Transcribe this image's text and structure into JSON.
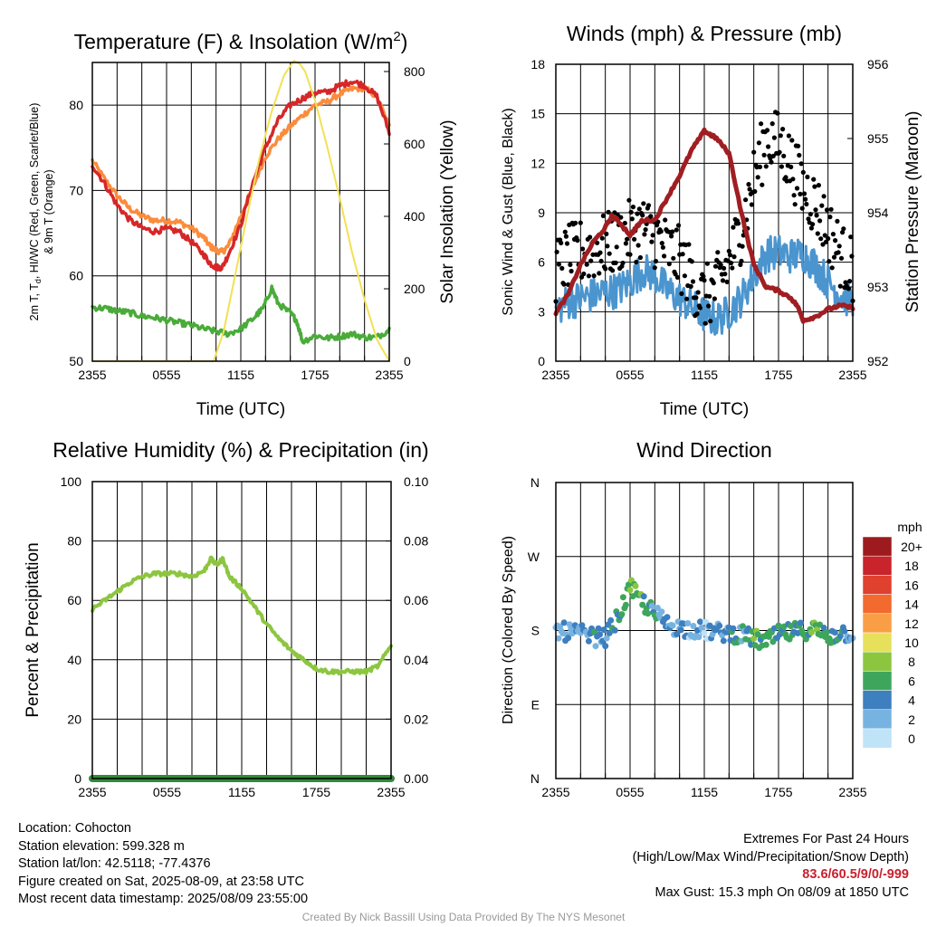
{
  "chart_data": [
    {
      "type": "line",
      "title": "Temperature (F) & Insolation (W/m²)",
      "title_main": "Temperature (F) & Insolation (W/m",
      "title_sup": "2",
      "title_tail": ")",
      "ylabel_left_line1": "2m T, T",
      "ylabel_left_sub": "d",
      "ylabel_left_line1_tail": ", HI/WC (Red, Green, Scarlet/Blue)",
      "ylabel_left_line2": "& 9m T (Orange)",
      "ylabel_right": "Solar Insolation (Yellow)",
      "xlabel": "Time (UTC)",
      "x_ticks": [
        "2355",
        "0555",
        "1155",
        "1755",
        "2355"
      ],
      "x_range_hours": [
        0,
        24
      ],
      "ylim_left": [
        50,
        85
      ],
      "yticks_left": [
        "50",
        "60",
        "70",
        "80"
      ],
      "ylim_right": [
        0,
        825
      ],
      "yticks_right": [
        "0",
        "200",
        "400",
        "600",
        "800"
      ],
      "series": [
        {
          "color": "#fb8c3c",
          "axis": "left",
          "x": [
            0,
            1,
            2,
            3,
            4,
            5,
            6,
            7,
            8,
            9,
            9.5,
            10,
            10.5,
            11,
            12,
            13,
            14,
            15,
            16,
            17,
            18,
            19,
            20,
            21,
            22,
            23,
            24
          ],
          "y": [
            73.5,
            71.3,
            69.4,
            67.9,
            67.0,
            66.5,
            66.5,
            66.3,
            65.6,
            64.5,
            63.5,
            63.0,
            62.8,
            63.5,
            67.0,
            70.5,
            74.0,
            76.0,
            77.5,
            78.8,
            80.0,
            80.4,
            81.3,
            81.9,
            82.0,
            81.0,
            77.5
          ]
        },
        {
          "color": "#d62728",
          "axis": "left",
          "x": [
            0,
            1,
            2,
            3,
            4,
            5,
            6,
            7,
            8,
            9,
            9.5,
            10,
            10.5,
            11,
            12,
            13,
            14,
            15,
            16,
            17,
            18,
            19,
            20,
            21,
            22,
            23,
            24
          ],
          "y": [
            73.0,
            70.8,
            68.3,
            66.6,
            65.6,
            65.2,
            65.5,
            65.2,
            64.0,
            62.5,
            61.5,
            61.0,
            61.0,
            62.5,
            66.0,
            71.0,
            75.0,
            78.2,
            80.0,
            80.8,
            81.5,
            81.5,
            82.3,
            82.8,
            82.3,
            81.0,
            76.8
          ]
        },
        {
          "color": "#4aab3a",
          "axis": "left",
          "x": [
            0,
            1,
            2,
            3,
            4,
            5,
            6,
            7,
            8,
            9,
            10,
            11,
            12,
            13,
            13.8,
            14.5,
            15,
            16,
            16.5,
            17,
            18,
            19,
            20,
            21,
            22,
            23,
            24
          ],
          "y": [
            56.3,
            56.2,
            55.9,
            55.7,
            55.3,
            55.1,
            54.8,
            54.5,
            54.2,
            53.8,
            53.5,
            53.2,
            53.8,
            55.0,
            56.2,
            58.6,
            56.8,
            55.6,
            54.8,
            52.3,
            53.0,
            52.7,
            52.9,
            53.2,
            52.8,
            52.8,
            53.7
          ]
        },
        {
          "color": "#f2e154",
          "axis": "right",
          "x": [
            0,
            9.8,
            10.6,
            11.5,
            12.5,
            13.5,
            14.5,
            15.5,
            16.3,
            16.8,
            17.2,
            18,
            19,
            20,
            21,
            22,
            23,
            24
          ],
          "y": [
            0,
            0,
            80,
            230,
            400,
            560,
            690,
            790,
            830,
            820,
            800,
            720,
            590,
            450,
            300,
            170,
            60,
            0
          ]
        }
      ]
    },
    {
      "type": "line",
      "title": "Winds (mph) & Pressure (mb)",
      "ylabel_left": "Sonic Wind & Gust (Blue, Black)",
      "ylabel_right": "Station Pressure (Maroon)",
      "xlabel": "Time (UTC)",
      "x_ticks": [
        "2355",
        "0555",
        "1155",
        "1755",
        "2355"
      ],
      "x_range_hours": [
        0,
        24
      ],
      "ylim_left": [
        0,
        18
      ],
      "yticks_left": [
        "0",
        "3",
        "6",
        "9",
        "12",
        "15",
        "18"
      ],
      "ylim_right": [
        952,
        956
      ],
      "yticks_right": [
        "952",
        "953",
        "954",
        "955",
        "956"
      ],
      "series": [
        {
          "color": "#4b95cf",
          "axis": "left",
          "x": [
            0,
            1,
            2,
            3,
            4,
            5,
            6,
            7,
            8,
            9,
            10,
            11,
            12,
            13,
            14,
            15,
            16,
            17,
            18,
            19,
            20,
            21,
            22,
            23,
            24
          ],
          "y": [
            3.2,
            3.6,
            3.8,
            4.0,
            4.2,
            4.3,
            4.8,
            5.5,
            5.2,
            4.3,
            3.8,
            3.3,
            2.8,
            2.5,
            3.0,
            3.8,
            5.2,
            6.5,
            6.6,
            6.4,
            6.5,
            5.8,
            4.8,
            4.0,
            3.6
          ]
        },
        {
          "color": "#000000",
          "axis": "left",
          "mode": "scatter",
          "x": [
            0,
            1,
            2,
            3,
            4,
            5,
            6,
            7,
            8,
            9,
            10,
            11,
            12,
            13,
            14,
            15,
            16,
            17,
            18,
            19,
            20,
            21,
            22,
            23,
            24
          ],
          "y": [
            5.5,
            6.3,
            6.6,
            6.8,
            7.0,
            7.3,
            7.8,
            8.2,
            7.6,
            6.8,
            6.2,
            5.0,
            3.8,
            4.5,
            6.0,
            8.0,
            11.0,
            13.5,
            13.2,
            12.0,
            10.5,
            9.5,
            8.0,
            6.5,
            5.5
          ]
        },
        {
          "color": "#a01e22",
          "axis": "right",
          "x": [
            0,
            1,
            2,
            3,
            4,
            4.5,
            5,
            6,
            6.5,
            7,
            8,
            9,
            10,
            11,
            12,
            12.5,
            13,
            14,
            15,
            16,
            17,
            18,
            19,
            19.5,
            20,
            21,
            22,
            23,
            24
          ],
          "y": [
            952.65,
            952.9,
            953.3,
            953.6,
            953.8,
            953.95,
            953.9,
            953.7,
            953.8,
            953.9,
            953.9,
            954.2,
            954.5,
            954.85,
            955.1,
            955.05,
            955.0,
            954.8,
            954.0,
            953.3,
            953.0,
            952.95,
            952.85,
            952.75,
            952.55,
            952.6,
            952.7,
            952.75,
            952.72
          ]
        }
      ]
    },
    {
      "type": "line",
      "title": "Relative Humidity (%) & Precipitation (in)",
      "ylabel_left": "Percent & Precipitation",
      "x_ticks": [
        "2355",
        "0555",
        "1155",
        "1755",
        "2355"
      ],
      "x_range_hours": [
        0,
        24
      ],
      "ylim_left": [
        0,
        100
      ],
      "yticks_left": [
        "0",
        "20",
        "40",
        "60",
        "80",
        "100"
      ],
      "ylim_right": [
        0,
        0.1
      ],
      "yticks_right": [
        "0.00",
        "0.02",
        "0.04",
        "0.06",
        "0.08",
        "0.10"
      ],
      "series": [
        {
          "color": "#8cc63f",
          "axis": "left",
          "x": [
            0,
            1,
            2,
            3,
            4,
            5,
            6,
            7,
            8,
            9,
            9.5,
            10,
            10.5,
            11,
            12,
            13,
            14,
            15,
            16,
            17,
            18,
            19,
            20,
            21,
            22,
            23,
            24
          ],
          "y": [
            57,
            60,
            63,
            66,
            68,
            69,
            69,
            69,
            68,
            70,
            74,
            72,
            74,
            68,
            64,
            58,
            52,
            47,
            43,
            40,
            37,
            36,
            36,
            36,
            36,
            38,
            45
          ]
        },
        {
          "color": "#2e8b3a",
          "axis": "right",
          "x": [
            0,
            24
          ],
          "y": [
            0,
            0
          ]
        }
      ]
    },
    {
      "type": "scatter",
      "title": "Wind Direction",
      "ylabel_left": "Direction (Colored By Speed)",
      "x_ticks": [
        "2355",
        "0555",
        "1155",
        "1755",
        "2355"
      ],
      "x_range_hours": [
        0,
        24
      ],
      "ylim_deg": [
        0,
        360
      ],
      "yticks": [
        "N",
        "E",
        "S",
        "W",
        "N"
      ],
      "colorbar_title": "mph",
      "colorbar_labels": [
        "20+",
        "18",
        "16",
        "14",
        "12",
        "10",
        "8",
        "6",
        "4",
        "2",
        "0"
      ],
      "colorbar_colors": [
        "#9d1b1e",
        "#c9232b",
        "#e0402e",
        "#f26a2e",
        "#fa9e45",
        "#e7e05a",
        "#8cc63f",
        "#3ea65c",
        "#3d7fbf",
        "#77b3e0",
        "#bfe3f7"
      ],
      "series": [
        {
          "x": [
            0,
            1,
            2,
            3,
            4,
            5,
            6,
            7,
            8,
            9,
            10,
            11,
            12,
            13,
            14,
            15,
            16,
            17,
            18,
            19,
            20,
            21,
            22,
            23,
            24
          ],
          "y": [
            180,
            178,
            176,
            172,
            172,
            195,
            232,
            215,
            200,
            188,
            183,
            182,
            180,
            178,
            177,
            175,
            170,
            166,
            175,
            178,
            180,
            182,
            172,
            178,
            176
          ],
          "speed": [
            3,
            3,
            3,
            4,
            4,
            5,
            7,
            6,
            4,
            3,
            3,
            2,
            2,
            3,
            4,
            4,
            6,
            6,
            6,
            5,
            5,
            6,
            5,
            4,
            3
          ]
        }
      ]
    }
  ],
  "info": {
    "location": "Location: Cohocton",
    "elevation": "Station elevation: 599.328 m",
    "latlon": "Station lat/lon: 42.5118; -77.4376",
    "created": "Figure created on Sat, 2025-08-09, at 23:58 UTC",
    "recent": "Most recent data timestamp: 2025/08/09 23:55:00"
  },
  "extremes": {
    "title": "Extremes For Past 24 Hours",
    "subtitle": "(High/Low/Max Wind/Precipitation/Snow Depth)",
    "values": "83.6/60.5/9/0/-999",
    "gust": "Max Gust: 15.3 mph On 08/09 at 1850 UTC"
  },
  "credit": "Created By Nick Bassill Using Data Provided By The NYS Mesonet"
}
